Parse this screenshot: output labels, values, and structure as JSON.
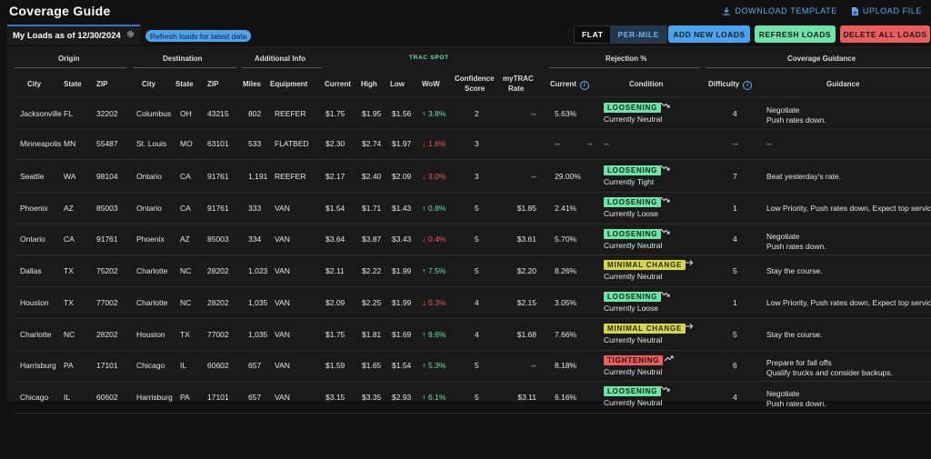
{
  "header": {
    "title": "Coverage Guide",
    "download_label": "DOWNLOAD TEMPLATE",
    "upload_label": "UPLOAD FILE"
  },
  "tab": {
    "label": "My Loads as of 12/30/2024"
  },
  "refresh_pill": "Refresh loads for latest data",
  "toggle": {
    "flat": "FLAT",
    "per_mile": "PER-MILE"
  },
  "buttons": {
    "add": "ADD NEW LOADS",
    "refresh": "REFRESH LOADS",
    "delete": "DELETE ALL LOADS"
  },
  "groups": {
    "origin": "Origin",
    "destination": "Destination",
    "additional": "Additional Info",
    "trac": "TRAC SPOT",
    "rejection": "Rejection %",
    "coverage": "Coverage Guidance"
  },
  "columns": {
    "city": "City",
    "state": "State",
    "zip": "ZIP",
    "dcity": "City",
    "dstate": "State",
    "dzip": "ZIP",
    "miles": "Miles",
    "equipment": "Equipment",
    "current": "Current",
    "high": "High",
    "low": "Low",
    "wow": "WoW",
    "confidence1": "Confidence",
    "confidence2": "Score",
    "mytrac1": "myTRAC",
    "mytrac2": "Rate",
    "rcurrent": "Current",
    "condition": "Condition",
    "difficulty": "Difficulty",
    "guidance": "Guidance"
  },
  "colors": {
    "accent": "#4aa3ee",
    "green": "#6ee3a5",
    "red": "#ea5d5d",
    "yellow": "#d6d64a"
  },
  "rows": [
    {
      "city": "Jacksonville",
      "state": "FL",
      "zip": "32202",
      "dcity": "Columbus",
      "dstate": "OH",
      "dzip": "43215",
      "miles": "802",
      "equipment": "REEFER",
      "current": "$1.75",
      "high": "$1.95",
      "low": "$1.56",
      "wow_dir": "up",
      "wow": "3.8%",
      "confidence": "2",
      "mytrac": "--",
      "rcurrent": "5.63%",
      "badge": "LOOSENING",
      "badge_type": "loosening",
      "trend": "down",
      "condition": "Currently Neutral",
      "difficulty": "4",
      "guidance1": "Negotiate",
      "guidance2": "Push rates down."
    },
    {
      "city": "Minneapolis",
      "state": "MN",
      "zip": "55487",
      "dcity": "St. Louis",
      "dstate": "MO",
      "dzip": "63101",
      "miles": "533",
      "equipment": "FLATBED",
      "current": "$2.30",
      "high": "$2.74",
      "low": "$1.97",
      "wow_dir": "down",
      "wow": "1.6%",
      "confidence": "3",
      "mytrac": "",
      "rcurrent": "--",
      "badge": "",
      "badge_type": "",
      "trend": "",
      "condition": "--",
      "difficulty": "--",
      "guidance1": "--",
      "guidance2": ""
    },
    {
      "city": "Seattle",
      "state": "WA",
      "zip": "98104",
      "dcity": "Ontario",
      "dstate": "CA",
      "dzip": "91761",
      "miles": "1,191",
      "equipment": "REEFER",
      "current": "$2.17",
      "high": "$2.40",
      "low": "$2.09",
      "wow_dir": "down",
      "wow": "3.0%",
      "confidence": "3",
      "mytrac": "--",
      "rcurrent": "29.00%",
      "badge": "LOOSENING",
      "badge_type": "loosening",
      "trend": "down",
      "condition": "Currently Tight",
      "difficulty": "7",
      "guidance1": "Beat yesterday's rate.",
      "guidance2": ""
    },
    {
      "city": "Phoenix",
      "state": "AZ",
      "zip": "85003",
      "dcity": "Ontario",
      "dstate": "CA",
      "dzip": "91761",
      "miles": "333",
      "equipment": "VAN",
      "current": "$1.54",
      "high": "$1.71",
      "low": "$1.43",
      "wow_dir": "up",
      "wow": "0.8%",
      "confidence": "5",
      "mytrac": "$1.85",
      "rcurrent": "2.41%",
      "badge": "LOOSENING",
      "badge_type": "loosening",
      "trend": "down",
      "condition": "Currently Loose",
      "difficulty": "1",
      "guidance1": "Low Priority, Push rates down, Expect top service",
      "guidance2": ""
    },
    {
      "city": "Ontario",
      "state": "CA",
      "zip": "91761",
      "dcity": "Phoenix",
      "dstate": "AZ",
      "dzip": "85003",
      "miles": "334",
      "equipment": "VAN",
      "current": "$3.64",
      "high": "$3.87",
      "low": "$3.43",
      "wow_dir": "down",
      "wow": "0.4%",
      "confidence": "5",
      "mytrac": "$3.61",
      "rcurrent": "5.70%",
      "badge": "LOOSENING",
      "badge_type": "loosening",
      "trend": "down",
      "condition": "Currently Neutral",
      "difficulty": "4",
      "guidance1": "Negotiate",
      "guidance2": "Push rates down."
    },
    {
      "city": "Dallas",
      "state": "TX",
      "zip": "75202",
      "dcity": "Charlotte",
      "dstate": "NC",
      "dzip": "28202",
      "miles": "1,023",
      "equipment": "VAN",
      "current": "$2.11",
      "high": "$2.22",
      "low": "$1.99",
      "wow_dir": "up",
      "wow": "7.5%",
      "confidence": "5",
      "mytrac": "$2.20",
      "rcurrent": "8.26%",
      "badge": "MINIMAL CHANGE",
      "badge_type": "minimal",
      "trend": "flat",
      "condition": "Currently Neutral",
      "difficulty": "5",
      "guidance1": "Stay the course.",
      "guidance2": ""
    },
    {
      "city": "Houston",
      "state": "TX",
      "zip": "77002",
      "dcity": "Charlotte",
      "dstate": "NC",
      "dzip": "28202",
      "miles": "1,035",
      "equipment": "VAN",
      "current": "$2.09",
      "high": "$2.25",
      "low": "$1.99",
      "wow_dir": "down",
      "wow": "0.3%",
      "confidence": "4",
      "mytrac": "$2.15",
      "rcurrent": "3.05%",
      "badge": "LOOSENING",
      "badge_type": "loosening",
      "trend": "down",
      "condition": "Currently Loose",
      "difficulty": "1",
      "guidance1": "Low Priority, Push rates down, Expect top service",
      "guidance2": ""
    },
    {
      "city": "Charlotte",
      "state": "NC",
      "zip": "28202",
      "dcity": "Houston",
      "dstate": "TX",
      "dzip": "77002",
      "miles": "1,035",
      "equipment": "VAN",
      "current": "$1.75",
      "high": "$1.81",
      "low": "$1.69",
      "wow_dir": "up",
      "wow": "9.6%",
      "confidence": "4",
      "mytrac": "$1.68",
      "rcurrent": "7.66%",
      "badge": "MINIMAL CHANGE",
      "badge_type": "minimal",
      "trend": "flat",
      "condition": "Currently Neutral",
      "difficulty": "5",
      "guidance1": "Stay the course.",
      "guidance2": ""
    },
    {
      "city": "Harrisburg",
      "state": "PA",
      "zip": "17101",
      "dcity": "Chicago",
      "dstate": "IL",
      "dzip": "60602",
      "miles": "657",
      "equipment": "VAN",
      "current": "$1.59",
      "high": "$1.65",
      "low": "$1.54",
      "wow_dir": "up",
      "wow": "5.3%",
      "confidence": "5",
      "mytrac": "--",
      "rcurrent": "8.18%",
      "badge": "TIGHTENING",
      "badge_type": "tight",
      "trend": "up",
      "condition": "Currently Neutral",
      "difficulty": "6",
      "guidance1": "Prepare for fall offs",
      "guidance2": "Qualify trucks and consider backups."
    },
    {
      "city": "Chicago",
      "state": "IL",
      "zip": "60602",
      "dcity": "Harrisburg",
      "dstate": "PA",
      "dzip": "17101",
      "miles": "657",
      "equipment": "VAN",
      "current": "$3.15",
      "high": "$3.35",
      "low": "$2.93",
      "wow_dir": "up",
      "wow": "6.1%",
      "confidence": "5",
      "mytrac": "$3.11",
      "rcurrent": "6.16%",
      "badge": "LOOSENING",
      "badge_type": "loosening",
      "trend": "down",
      "condition": "Currently Neutral",
      "difficulty": "4",
      "guidance1": "Negotiate",
      "guidance2": "Push rates down."
    }
  ]
}
